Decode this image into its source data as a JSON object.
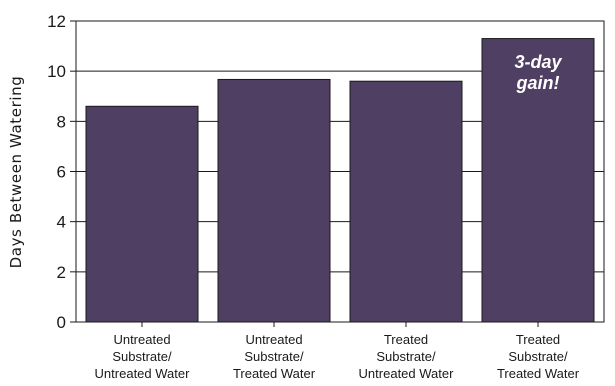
{
  "chart_data": {
    "type": "bar",
    "title": "",
    "xlabel": "",
    "ylabel": "Days Between Watering",
    "ylim": [
      0,
      12
    ],
    "yticks": [
      0,
      2,
      4,
      6,
      8,
      10,
      12
    ],
    "grid": true,
    "categories": [
      [
        "Untreated",
        "Substrate/",
        "Untreated Water"
      ],
      [
        "Untreated",
        "Substrate/",
        "Treated Water"
      ],
      [
        "Treated",
        "Substrate/",
        "Untreated Water"
      ],
      [
        "Treated",
        "Substrate/",
        "Treated Water"
      ]
    ],
    "values": [
      8.6,
      9.67,
      9.6,
      11.3
    ],
    "bar_color": "#4f3f62",
    "annotation": {
      "bar_index": 3,
      "lines": [
        "3-day",
        "gain!"
      ]
    }
  }
}
